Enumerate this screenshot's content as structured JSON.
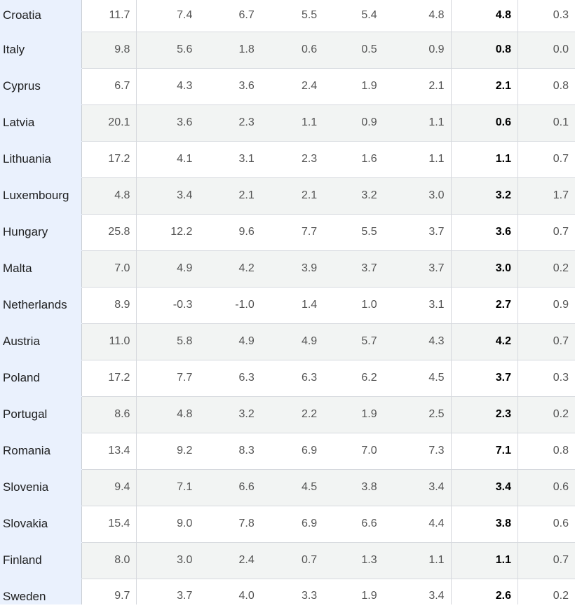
{
  "table": {
    "rows": [
      {
        "country": "Croatia",
        "values": [
          "11.7",
          "7.4",
          "6.7",
          "5.5",
          "5.4",
          "4.8",
          "4.8",
          "0.3"
        ]
      },
      {
        "country": "Italy",
        "values": [
          "9.8",
          "5.6",
          "1.8",
          "0.6",
          "0.5",
          "0.9",
          "0.8",
          "0.0"
        ]
      },
      {
        "country": "Cyprus",
        "values": [
          "6.7",
          "4.3",
          "3.6",
          "2.4",
          "1.9",
          "2.1",
          "2.1",
          "0.8"
        ]
      },
      {
        "country": "Latvia",
        "values": [
          "20.1",
          "3.6",
          "2.3",
          "1.1",
          "0.9",
          "1.1",
          "0.6",
          "0.1"
        ]
      },
      {
        "country": "Lithuania",
        "values": [
          "17.2",
          "4.1",
          "3.1",
          "2.3",
          "1.6",
          "1.1",
          "1.1",
          "0.7"
        ]
      },
      {
        "country": "Luxembourg",
        "values": [
          "4.8",
          "3.4",
          "2.1",
          "2.1",
          "3.2",
          "3.0",
          "3.2",
          "1.7"
        ]
      },
      {
        "country": "Hungary",
        "values": [
          "25.8",
          "12.2",
          "9.6",
          "7.7",
          "5.5",
          "3.7",
          "3.6",
          "0.7"
        ]
      },
      {
        "country": "Malta",
        "values": [
          "7.0",
          "4.9",
          "4.2",
          "3.9",
          "3.7",
          "3.7",
          "3.0",
          "0.2"
        ]
      },
      {
        "country": "Netherlands",
        "values": [
          "8.9",
          "-0.3",
          "-1.0",
          "1.4",
          "1.0",
          "3.1",
          "2.7",
          "0.9"
        ]
      },
      {
        "country": "Austria",
        "values": [
          "11.0",
          "5.8",
          "4.9",
          "4.9",
          "5.7",
          "4.3",
          "4.2",
          "0.7"
        ]
      },
      {
        "country": "Poland",
        "values": [
          "17.2",
          "7.7",
          "6.3",
          "6.3",
          "6.2",
          "4.5",
          "3.7",
          "0.3"
        ]
      },
      {
        "country": "Portugal",
        "values": [
          "8.6",
          "4.8",
          "3.2",
          "2.2",
          "1.9",
          "2.5",
          "2.3",
          "0.2"
        ]
      },
      {
        "country": "Romania",
        "values": [
          "13.4",
          "9.2",
          "8.3",
          "6.9",
          "7.0",
          "7.3",
          "7.1",
          "0.8"
        ]
      },
      {
        "country": "Slovenia",
        "values": [
          "9.4",
          "7.1",
          "6.6",
          "4.5",
          "3.8",
          "3.4",
          "3.4",
          "0.6"
        ]
      },
      {
        "country": "Slovakia",
        "values": [
          "15.4",
          "9.0",
          "7.8",
          "6.9",
          "6.6",
          "4.4",
          "3.8",
          "0.6"
        ]
      },
      {
        "country": "Finland",
        "values": [
          "8.0",
          "3.0",
          "2.4",
          "0.7",
          "1.3",
          "1.1",
          "1.1",
          "0.7"
        ]
      },
      {
        "country": "Sweden",
        "values": [
          "9.7",
          "3.7",
          "4.0",
          "3.3",
          "1.9",
          "3.4",
          "2.6",
          "0.2"
        ]
      }
    ]
  }
}
